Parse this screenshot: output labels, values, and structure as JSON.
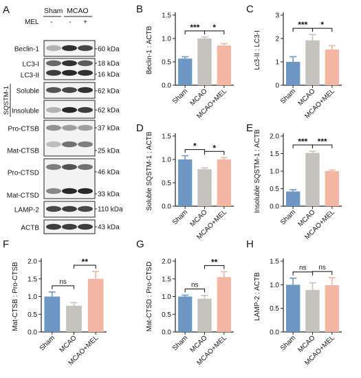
{
  "blot": {
    "label": "A",
    "header": {
      "group1": "Sham",
      "group2": "MCAO"
    },
    "mel_label": "MEL",
    "mel_signs": [
      "-",
      "-",
      "+"
    ],
    "sqstm_label": "SQSTM-1",
    "rows": [
      {
        "name": "Beclin-1",
        "kda": [
          "60 kDa"
        ]
      },
      {
        "name": "LC3-I",
        "name2": "LC3-II",
        "kda": [
          "18 kDa",
          "16 kDa"
        ]
      },
      {
        "name": "Soluble",
        "kda": [
          "62 kDa"
        ]
      },
      {
        "name": "Insoluble",
        "kda": [
          "62 kDa"
        ]
      },
      {
        "name": "Pro-CTSB",
        "name2": "Mat-CTSB",
        "kda": [
          "37 kDa",
          "25 kDa"
        ]
      },
      {
        "name": "Pro-CTSD",
        "name2": "Mat-CTSD",
        "kda": [
          "46 kDa",
          "33 kDa"
        ]
      },
      {
        "name": "LAMP-2",
        "kda": [
          "110 kDa"
        ]
      },
      {
        "name": "ACTB",
        "kda": [
          "43 kDa"
        ]
      }
    ]
  },
  "chart_data": [
    {
      "panel": "B",
      "type": "bar",
      "ylabel": "Beclin-1 : ACTB",
      "categories": [
        "Sham",
        "MCAO",
        "MCAO+MEL"
      ],
      "values": [
        0.57,
        1.0,
        0.85
      ],
      "errors": [
        0.04,
        0.03,
        0.04
      ],
      "ylim": [
        0,
        1.5
      ],
      "yticks": [
        "0.0",
        "0.5",
        "1.0",
        "1.5"
      ],
      "sig": [
        {
          "from": 0,
          "to": 1,
          "label": "***"
        },
        {
          "from": 1,
          "to": 2,
          "label": "*"
        }
      ]
    },
    {
      "panel": "C",
      "type": "bar",
      "ylabel": "Lc3-II : LC3-I",
      "categories": [
        "Sham",
        "MCAO",
        "MCAO+MEL"
      ],
      "values": [
        1.0,
        1.92,
        1.53
      ],
      "errors": [
        0.22,
        0.25,
        0.16
      ],
      "ylim": [
        0,
        3
      ],
      "yticks": [
        "0",
        "1",
        "2",
        "3"
      ],
      "sig": [
        {
          "from": 0,
          "to": 1,
          "label": "***"
        },
        {
          "from": 1,
          "to": 2,
          "label": "*"
        }
      ]
    },
    {
      "panel": "D",
      "type": "bar",
      "ylabel": "Soluble SQSTM-1 : ACTB",
      "categories": [
        "Sham",
        "MCAO",
        "MCAO+MEL"
      ],
      "values": [
        1.0,
        0.79,
        1.0
      ],
      "errors": [
        0.08,
        0.03,
        0.04
      ],
      "ylim": [
        0,
        1.5
      ],
      "yticks": [
        "0.0",
        "0.5",
        "1.0",
        "1.5"
      ],
      "sig": [
        {
          "from": 0,
          "to": 1,
          "label": "*"
        },
        {
          "from": 1,
          "to": 2,
          "label": "*"
        }
      ]
    },
    {
      "panel": "E",
      "type": "bar",
      "ylabel": "Insoluble SQSTM-1 : ACTB",
      "categories": [
        "Sham",
        "MCAO",
        "MCAO+MEL"
      ],
      "values": [
        0.42,
        1.52,
        1.0
      ],
      "errors": [
        0.05,
        0.05,
        0.03
      ],
      "ylim": [
        0,
        2.0
      ],
      "yticks": [
        "0.0",
        "0.5",
        "1.0",
        "1.5",
        "2.0"
      ],
      "sig": [
        {
          "from": 0,
          "to": 1,
          "label": "***"
        },
        {
          "from": 1,
          "to": 2,
          "label": "***"
        }
      ]
    },
    {
      "panel": "F",
      "type": "bar",
      "ylabel": "Mat-CTSB : Pro-CTSB",
      "categories": [
        "Sham",
        "MCAO",
        "MCAO+MEL"
      ],
      "values": [
        1.0,
        0.74,
        1.5
      ],
      "errors": [
        0.13,
        0.09,
        0.21
      ],
      "ylim": [
        0,
        2.0
      ],
      "yticks": [
        "0.0",
        "0.5",
        "1.0",
        "1.5",
        "2.0"
      ],
      "sig": [
        {
          "from": 0,
          "to": 1,
          "label": "ns"
        },
        {
          "from": 1,
          "to": 2,
          "label": "**"
        }
      ]
    },
    {
      "panel": "G",
      "type": "bar",
      "ylabel": "Mat-CTSD : Pro-CTSD",
      "categories": [
        "Sham",
        "MCAO",
        "MCAO+MEL"
      ],
      "values": [
        1.0,
        0.94,
        1.55
      ],
      "errors": [
        0.04,
        0.09,
        0.15
      ],
      "ylim": [
        0,
        2.0
      ],
      "yticks": [
        "0.0",
        "0.5",
        "1.0",
        "1.5",
        "2.0"
      ],
      "sig": [
        {
          "from": 0,
          "to": 1,
          "label": "ns"
        },
        {
          "from": 1,
          "to": 2,
          "label": "**"
        }
      ]
    },
    {
      "panel": "H",
      "type": "bar",
      "ylabel": "LAMP-2 : ACTB",
      "categories": [
        "Sham",
        "MCAO",
        "MCAO+MEL"
      ],
      "values": [
        1.0,
        0.89,
        0.99
      ],
      "errors": [
        0.14,
        0.15,
        0.16
      ],
      "ylim": [
        0,
        1.5
      ],
      "yticks": [
        "0.0",
        "0.5",
        "1.0",
        "1.5"
      ],
      "sig": [
        {
          "from": 0,
          "to": 1,
          "label": "ns"
        },
        {
          "from": 1,
          "to": 2,
          "label": "ns"
        }
      ]
    }
  ],
  "colors": {
    "sham": "#6b97c2",
    "mcao": "#c4c4bd",
    "mel": "#f3b6a2",
    "axis": "#222222"
  }
}
